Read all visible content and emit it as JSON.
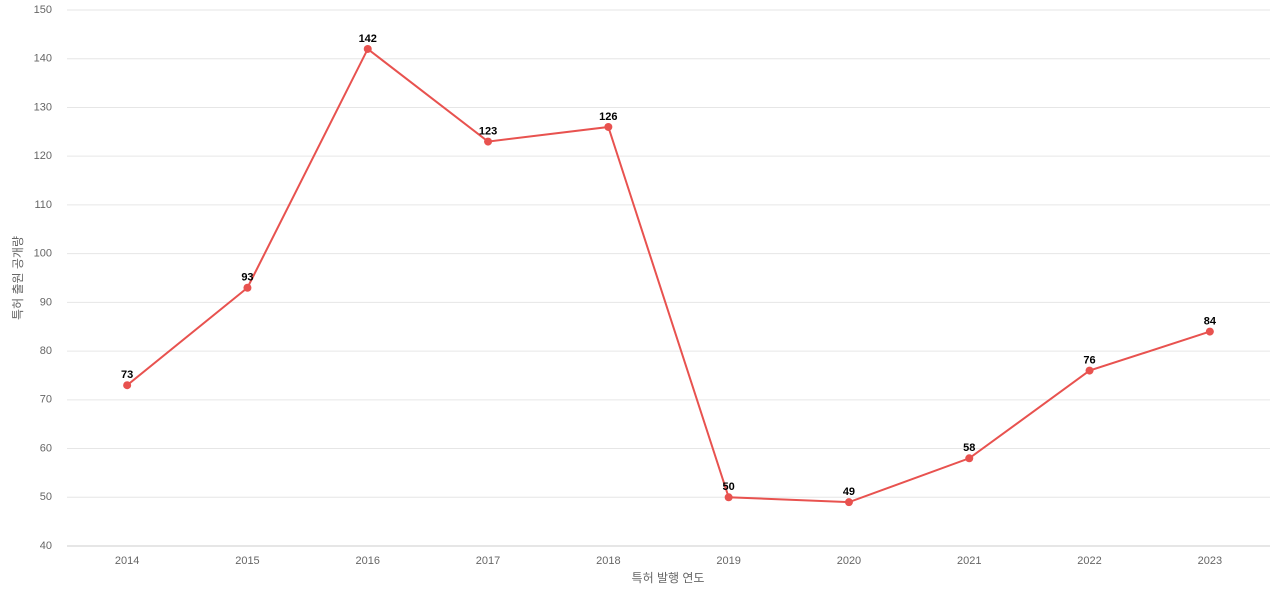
{
  "chart_data": {
    "type": "line",
    "x_label": "특허 발행 연도",
    "y_label": "특허 출원 공개량",
    "categories": [
      "2014",
      "2015",
      "2016",
      "2017",
      "2018",
      "2019",
      "2020",
      "2021",
      "2022",
      "2023"
    ],
    "series": [
      {
        "name": "특허 출원 공개량",
        "color": "#e8524f",
        "values": [
          73,
          93,
          142,
          123,
          126,
          50,
          49,
          58,
          76,
          84
        ]
      }
    ],
    "ylim": [
      40,
      150
    ],
    "yticks": [
      40,
      50,
      60,
      70,
      80,
      90,
      100,
      110,
      120,
      130,
      140,
      150
    ],
    "grid": true
  }
}
